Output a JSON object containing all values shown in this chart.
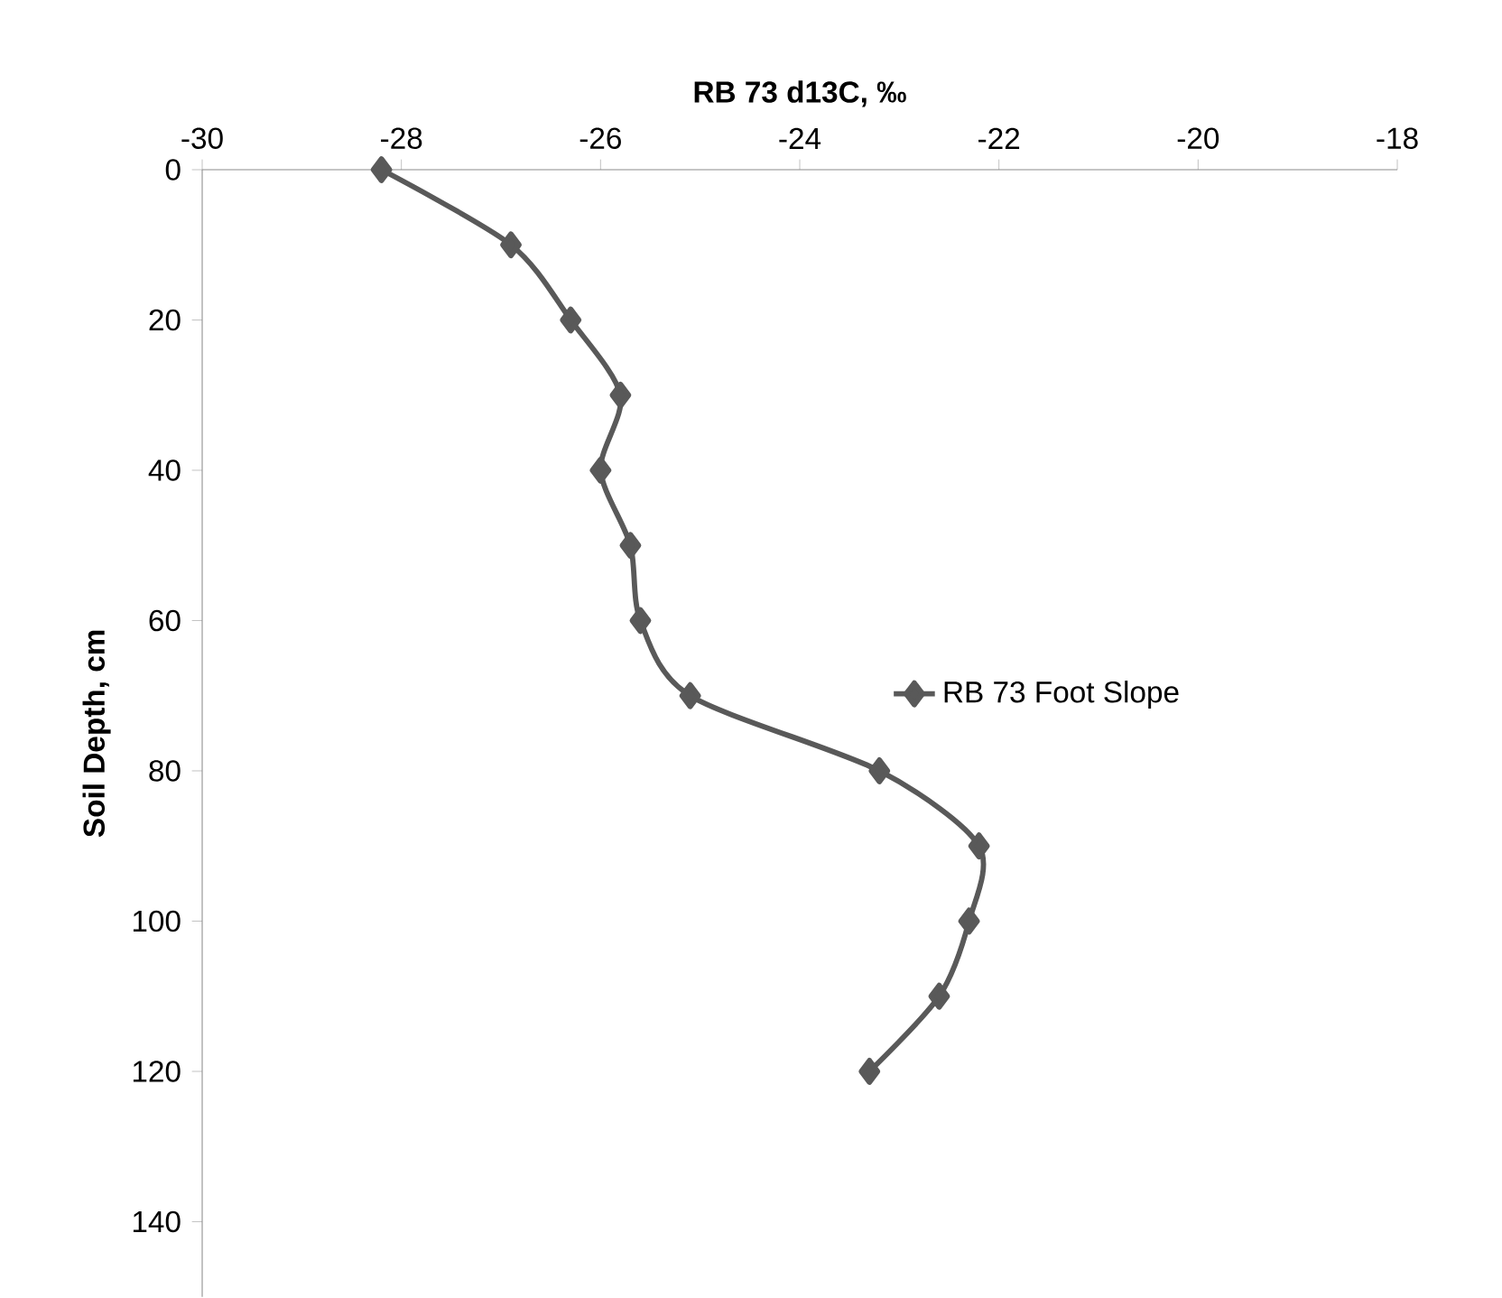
{
  "chart_data": {
    "type": "line",
    "xlabel": "RB 73 d13C, ‰",
    "ylabel": "Soil Depth, cm",
    "orientation": "horizontal",
    "x": [
      0,
      10,
      20,
      30,
      40,
      50,
      60,
      70,
      80,
      90,
      100,
      110,
      120
    ],
    "series": [
      {
        "name": "RB 73 Foot Slope",
        "color": "#595959",
        "values": [
          -28.2,
          -26.9,
          -26.3,
          -25.8,
          -26.0,
          -25.7,
          -25.6,
          -25.1,
          -23.2,
          -22.2,
          -22.3,
          -22.6,
          -23.3
        ]
      }
    ],
    "xlim": [
      -30,
      -18
    ],
    "xticks": [
      -30,
      -28,
      -26,
      -24,
      -22,
      -20,
      -18
    ],
    "ylim": [
      150,
      0
    ],
    "yticks": [
      0,
      20,
      40,
      60,
      80,
      100,
      120,
      140
    ],
    "marker": "diamond",
    "line_style": "solid",
    "legend": "right",
    "grid": false
  }
}
